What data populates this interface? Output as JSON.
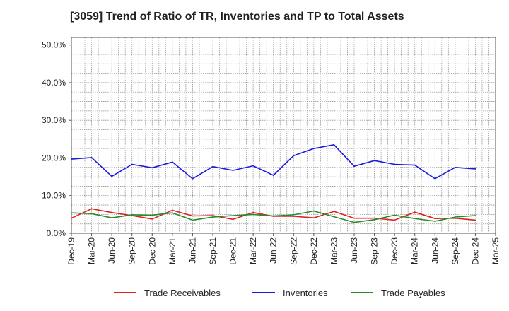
{
  "title": "[3059]  Trend of Ratio of TR, Inventories and TP to Total Assets",
  "chart_data": {
    "type": "line",
    "title": "[3059]  Trend of Ratio of TR, Inventories and TP to Total Assets",
    "xlabel": "",
    "ylabel": "",
    "ylim": [
      0,
      52
    ],
    "y_ticks": [
      0,
      10,
      20,
      30,
      40,
      50
    ],
    "y_tick_labels": [
      "0.0%",
      "10.0%",
      "20.0%",
      "30.0%",
      "40.0%",
      "50.0%"
    ],
    "grid": true,
    "legend_position": "bottom",
    "x_tick_labels": [
      "Dec-19",
      "Mar-20",
      "Jun-20",
      "Sep-20",
      "Dec-20",
      "Mar-21",
      "Jun-21",
      "Sep-21",
      "Dec-21",
      "Mar-22",
      "Jun-22",
      "Sep-22",
      "Dec-22",
      "Mar-23",
      "Jun-23",
      "Sep-23",
      "Dec-23",
      "Mar-24",
      "Jun-24",
      "Sep-24",
      "Dec-24",
      "Mar-25"
    ],
    "x": [
      "Dec-19",
      "Mar-20",
      "Jun-20",
      "Sep-20",
      "Dec-20",
      "Mar-21",
      "Jun-21",
      "Sep-21",
      "Dec-21",
      "Mar-22",
      "Jun-22",
      "Sep-22",
      "Dec-22",
      "Mar-23",
      "Jun-23",
      "Sep-23",
      "Dec-23",
      "Mar-24",
      "Jun-24",
      "Sep-24",
      "Dec-24"
    ],
    "series": [
      {
        "name": "Trade Receivables",
        "color": "#e02020",
        "values": [
          4.0,
          6.5,
          5.5,
          4.7,
          3.8,
          6.1,
          4.6,
          4.7,
          3.7,
          5.5,
          4.5,
          4.5,
          4.1,
          5.8,
          4.0,
          4.0,
          3.5,
          5.6,
          3.9,
          4.0,
          3.5
        ]
      },
      {
        "name": "Inventories",
        "color": "#1a1adf",
        "values": [
          19.7,
          20.1,
          15.1,
          18.3,
          17.4,
          18.9,
          14.5,
          17.7,
          16.7,
          17.9,
          15.4,
          20.6,
          22.5,
          23.5,
          17.8,
          19.3,
          18.3,
          18.1,
          14.5,
          17.5,
          17.1
        ]
      },
      {
        "name": "Trade Payables",
        "color": "#2a8a2a",
        "values": [
          5.4,
          5.2,
          4.1,
          4.9,
          4.8,
          5.4,
          3.5,
          4.3,
          4.7,
          5.0,
          4.6,
          4.9,
          5.9,
          4.4,
          2.9,
          3.6,
          4.8,
          3.9,
          3.2,
          4.3,
          4.7
        ]
      }
    ]
  }
}
